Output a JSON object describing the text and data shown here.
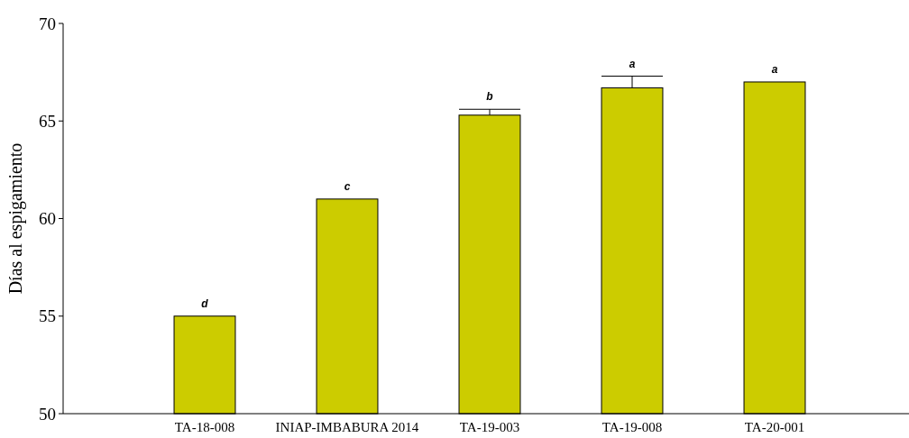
{
  "chart_data": {
    "type": "bar",
    "ylabel": "Días al espigamiento",
    "categories": [
      "TA-18-008",
      "INIAP-IMBABURA 2014",
      "TA-19-003",
      "TA-19-008",
      "TA-20-001"
    ],
    "values": [
      55,
      61,
      65.3,
      66.7,
      67
    ],
    "errors": [
      null,
      null,
      [
        65.3,
        65.6
      ],
      [
        66.7,
        67.3
      ],
      null
    ],
    "color": "#cccc00",
    "ylim": [
      50,
      70
    ],
    "yticks": [
      50,
      55,
      60,
      65,
      70
    ],
    "grid": false,
    "annotations": [
      "d",
      "c",
      "b",
      "a",
      "a"
    ]
  }
}
